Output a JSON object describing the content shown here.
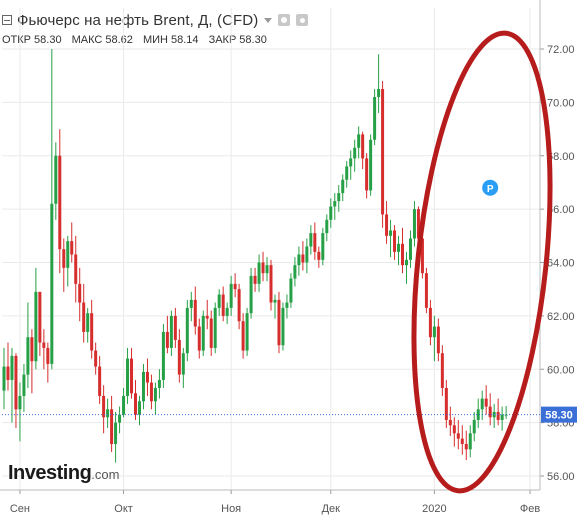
{
  "header": {
    "title": "Фьючерс на нефть Brent, Д, (CFD)",
    "icons": [
      "collapse-icon",
      "dropdown-caret-icon",
      "eye-icon",
      "gear-icon"
    ]
  },
  "ohlc": {
    "open_label": "ОТКР",
    "open": "58.30",
    "high_label": "МАКС",
    "high": "58.62",
    "low_label": "МИН",
    "low": "58.14",
    "close_label": "ЗАКР",
    "close": "58.30"
  },
  "branding": {
    "name": "Investing",
    "suffix": ".com"
  },
  "colors": {
    "up": "#26a046",
    "down": "#d62d2d",
    "annotation": "#b71c1c",
    "price_tag": "#3b6fd8",
    "marker": "#2a9df4",
    "grid": "#eaeaea"
  },
  "chart_data": {
    "type": "candlestick",
    "title": "Фьючерс на нефть Brent, Д, (CFD)",
    "yticks": [
      "56.00",
      "58.00",
      "60.00",
      "62.00",
      "64.00",
      "66.00",
      "68.00",
      "70.00",
      "72.00"
    ],
    "ylim": [
      55.5,
      73.0
    ],
    "xlim": [
      0,
      134
    ],
    "xticks": [
      {
        "label": "Сен",
        "x": 4
      },
      {
        "label": "Окт",
        "x": 30
      },
      {
        "label": "Ноя",
        "x": 57
      },
      {
        "label": "Дек",
        "x": 82
      },
      {
        "label": "2020",
        "x": 108
      },
      {
        "label": "Фев",
        "x": 132
      }
    ],
    "last_price": "58.30",
    "last_value": 58.3,
    "marker": {
      "label": "P",
      "x": 122,
      "y": 66.8
    },
    "grid": true,
    "annotation": "red ellipse encircling the late-December to January candles",
    "ohlc": [
      [
        59.2,
        60.8,
        58.5,
        60.1
      ],
      [
        60.1,
        61.0,
        59.2,
        59.6
      ],
      [
        59.6,
        60.8,
        58.0,
        60.5
      ],
      [
        60.5,
        60.6,
        57.8,
        58.5
      ],
      [
        58.5,
        59.5,
        57.3,
        59.0
      ],
      [
        59.0,
        60.2,
        58.4,
        59.8
      ],
      [
        59.8,
        62.5,
        59.3,
        61.2
      ],
      [
        61.2,
        61.5,
        59.1,
        60.3
      ],
      [
        60.3,
        63.8,
        60.0,
        62.9
      ],
      [
        62.9,
        62.9,
        60.5,
        61.0
      ],
      [
        61.0,
        61.5,
        60.0,
        60.8
      ],
      [
        60.8,
        61.0,
        59.5,
        60.2
      ],
      [
        60.2,
        72.0,
        60.0,
        66.2
      ],
      [
        66.2,
        68.5,
        65.6,
        68.0
      ],
      [
        68.0,
        69.0,
        63.6,
        64.5
      ],
      [
        64.5,
        64.9,
        62.9,
        63.8
      ],
      [
        63.8,
        65.0,
        63.1,
        64.8
      ],
      [
        64.8,
        65.5,
        64.0,
        64.3
      ],
      [
        64.3,
        65.0,
        62.5,
        63.2
      ],
      [
        63.2,
        63.8,
        61.8,
        62.5
      ],
      [
        62.5,
        63.2,
        61.0,
        61.4
      ],
      [
        61.4,
        62.3,
        61.0,
        62.1
      ],
      [
        62.1,
        62.6,
        60.4,
        60.7
      ],
      [
        60.7,
        61.0,
        59.8,
        60.1
      ],
      [
        60.1,
        60.5,
        58.7,
        59.0
      ],
      [
        59.0,
        59.4,
        57.6,
        58.2
      ],
      [
        58.2,
        58.9,
        57.8,
        58.5
      ],
      [
        58.5,
        59.0,
        56.9,
        57.2
      ],
      [
        57.2,
        58.4,
        56.5,
        58.0
      ],
      [
        58.0,
        58.6,
        57.6,
        58.3
      ],
      [
        58.3,
        59.3,
        58.2,
        59.0
      ],
      [
        59.0,
        60.8,
        58.7,
        60.4
      ],
      [
        60.4,
        60.8,
        58.9,
        59.1
      ],
      [
        59.1,
        59.6,
        58.1,
        58.3
      ],
      [
        58.3,
        59.0,
        57.9,
        58.8
      ],
      [
        58.8,
        60.2,
        58.5,
        59.9
      ],
      [
        59.9,
        60.4,
        59.0,
        59.5
      ],
      [
        59.5,
        59.8,
        58.5,
        58.8
      ],
      [
        58.8,
        59.5,
        58.3,
        59.3
      ],
      [
        59.3,
        60.0,
        58.9,
        59.6
      ],
      [
        59.6,
        61.7,
        59.3,
        61.4
      ],
      [
        61.4,
        62.0,
        60.6,
        60.8
      ],
      [
        60.8,
        62.2,
        60.5,
        62.0
      ],
      [
        62.0,
        62.3,
        60.8,
        61.1
      ],
      [
        61.1,
        61.5,
        59.5,
        59.8
      ],
      [
        59.8,
        60.8,
        59.3,
        60.6
      ],
      [
        60.6,
        62.6,
        60.3,
        62.3
      ],
      [
        62.3,
        62.9,
        61.8,
        62.6
      ],
      [
        62.6,
        63.1,
        61.3,
        61.6
      ],
      [
        61.6,
        61.9,
        60.4,
        60.7
      ],
      [
        60.7,
        62.2,
        60.5,
        62.0
      ],
      [
        62.0,
        62.6,
        61.5,
        61.9
      ],
      [
        61.9,
        62.2,
        60.5,
        60.8
      ],
      [
        60.8,
        62.5,
        60.6,
        62.3
      ],
      [
        62.3,
        63.0,
        62.0,
        62.8
      ],
      [
        62.8,
        63.1,
        61.8,
        62.0
      ],
      [
        62.0,
        62.5,
        61.7,
        62.3
      ],
      [
        62.3,
        63.5,
        62.0,
        63.2
      ],
      [
        63.2,
        63.6,
        62.7,
        63.0
      ],
      [
        63.0,
        63.2,
        61.5,
        61.8
      ],
      [
        61.8,
        62.1,
        60.4,
        60.7
      ],
      [
        60.7,
        62.3,
        60.5,
        62.1
      ],
      [
        62.1,
        63.8,
        61.9,
        63.5
      ],
      [
        63.5,
        63.8,
        62.9,
        63.2
      ],
      [
        63.2,
        64.3,
        62.9,
        64.0
      ],
      [
        64.0,
        64.4,
        63.3,
        63.6
      ],
      [
        63.6,
        64.2,
        63.3,
        63.9
      ],
      [
        63.9,
        64.1,
        62.2,
        62.5
      ],
      [
        62.5,
        62.8,
        61.9,
        62.6
      ],
      [
        62.6,
        62.9,
        60.6,
        60.9
      ],
      [
        60.9,
        62.5,
        60.7,
        62.3
      ],
      [
        62.3,
        62.8,
        61.9,
        62.5
      ],
      [
        62.5,
        63.6,
        62.3,
        63.4
      ],
      [
        63.4,
        64.2,
        63.1,
        63.9
      ],
      [
        63.9,
        64.6,
        63.5,
        64.3
      ],
      [
        64.3,
        64.8,
        63.7,
        64.0
      ],
      [
        64.0,
        64.9,
        63.6,
        64.6
      ],
      [
        64.6,
        65.4,
        64.3,
        65.1
      ],
      [
        65.1,
        65.5,
        64.1,
        64.4
      ],
      [
        64.4,
        64.6,
        63.8,
        64.1
      ],
      [
        64.1,
        65.3,
        63.9,
        65.1
      ],
      [
        65.1,
        65.8,
        64.8,
        65.6
      ],
      [
        65.6,
        66.4,
        65.3,
        66.1
      ],
      [
        66.1,
        66.6,
        65.6,
        66.3
      ],
      [
        66.3,
        66.9,
        65.9,
        66.6
      ],
      [
        66.6,
        67.3,
        66.3,
        67.1
      ],
      [
        67.1,
        67.8,
        66.8,
        67.6
      ],
      [
        67.6,
        68.2,
        67.1,
        67.9
      ],
      [
        67.9,
        68.6,
        67.4,
        68.3
      ],
      [
        68.3,
        69.1,
        67.9,
        68.8
      ],
      [
        68.8,
        68.9,
        67.5,
        67.9
      ],
      [
        67.9,
        68.1,
        66.4,
        66.7
      ],
      [
        66.7,
        68.8,
        66.5,
        68.6
      ],
      [
        68.6,
        70.5,
        68.4,
        70.2
      ],
      [
        70.2,
        71.8,
        69.6,
        70.5
      ],
      [
        70.5,
        70.8,
        65.3,
        65.8
      ],
      [
        65.8,
        66.3,
        64.7,
        65.0
      ],
      [
        65.0,
        65.6,
        64.2,
        65.2
      ],
      [
        65.2,
        65.4,
        64.1,
        64.4
      ],
      [
        64.4,
        65.0,
        63.9,
        64.7
      ],
      [
        64.7,
        65.3,
        63.6,
        63.9
      ],
      [
        63.9,
        64.4,
        63.2,
        64.1
      ],
      [
        64.1,
        65.2,
        63.8,
        64.9
      ],
      [
        64.9,
        66.3,
        64.6,
        66.0
      ],
      [
        66.0,
        66.1,
        64.7,
        64.9
      ],
      [
        64.9,
        65.2,
        63.4,
        63.6
      ],
      [
        63.6,
        63.8,
        62.1,
        62.3
      ],
      [
        62.3,
        62.6,
        60.9,
        61.2
      ],
      [
        61.2,
        62.0,
        60.3,
        61.6
      ],
      [
        61.6,
        61.9,
        60.3,
        60.6
      ],
      [
        60.6,
        60.9,
        59.0,
        59.3
      ],
      [
        59.3,
        59.6,
        57.8,
        58.1
      ],
      [
        58.1,
        58.6,
        57.5,
        57.9
      ],
      [
        57.9,
        58.2,
        57.1,
        57.6
      ],
      [
        57.6,
        58.1,
        57.0,
        57.4
      ],
      [
        57.4,
        57.9,
        56.8,
        57.2
      ],
      [
        57.2,
        57.7,
        56.6,
        57.0
      ],
      [
        57.0,
        57.9,
        56.7,
        57.6
      ],
      [
        57.6,
        58.4,
        57.3,
        58.1
      ],
      [
        58.1,
        58.9,
        57.8,
        58.5
      ],
      [
        58.5,
        59.2,
        58.1,
        58.9
      ],
      [
        58.9,
        59.4,
        58.3,
        58.6
      ],
      [
        58.6,
        59.1,
        57.9,
        58.2
      ],
      [
        58.2,
        58.7,
        57.8,
        58.4
      ],
      [
        58.4,
        58.9,
        57.9,
        58.1
      ],
      [
        58.1,
        58.6,
        57.7,
        58.3
      ],
      [
        58.3,
        58.62,
        58.14,
        58.3
      ]
    ]
  }
}
